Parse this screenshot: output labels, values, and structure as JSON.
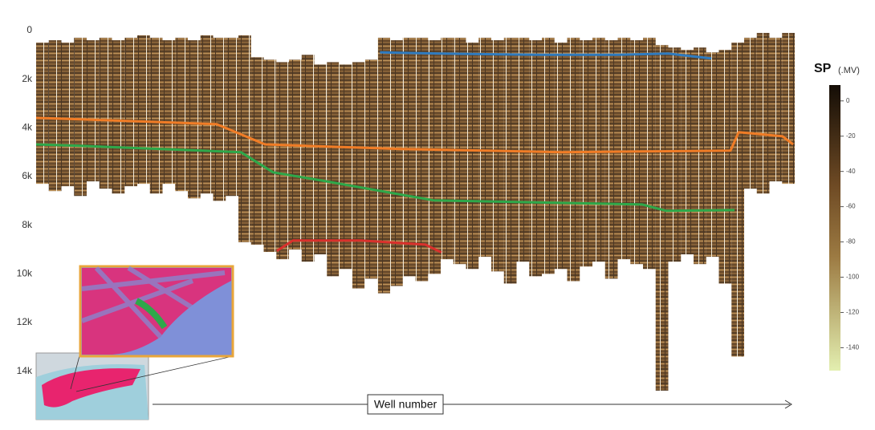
{
  "chart_data": {
    "type": "well-log-section",
    "xlabel": "Well number",
    "xlim": [
      0,
      300
    ],
    "ylim": [
      0,
      15000
    ],
    "yticks": [
      0,
      {
        "value": 2000,
        "label": "2k"
      },
      {
        "value": 4000,
        "label": "4k"
      },
      {
        "value": 6000,
        "label": "6k"
      },
      {
        "value": 8000,
        "label": "8k"
      },
      {
        "value": 10000,
        "label": "10k"
      },
      {
        "value": 12000,
        "label": "12k"
      },
      {
        "value": 14000,
        "label": "14k"
      }
    ],
    "wells": {
      "x": [
        0,
        5,
        10,
        15,
        20,
        25,
        30,
        35,
        40,
        45,
        50,
        55,
        60,
        65,
        70,
        75,
        80,
        85,
        90,
        95,
        100,
        105,
        110,
        115,
        120,
        125,
        130,
        135,
        140,
        145,
        150,
        155,
        160,
        165,
        170,
        175,
        180,
        185,
        190,
        195,
        200,
        205,
        210,
        215,
        220,
        225,
        230,
        235,
        240,
        245,
        250,
        255,
        260,
        265,
        270,
        275,
        280,
        285,
        290,
        295
      ],
      "top": [
        500,
        400,
        500,
        300,
        400,
        300,
        400,
        300,
        200,
        300,
        400,
        300,
        400,
        200,
        300,
        300,
        200,
        1100,
        1200,
        1300,
        1200,
        1000,
        1400,
        1300,
        1400,
        1300,
        1200,
        300,
        400,
        300,
        300,
        400,
        300,
        300,
        500,
        300,
        400,
        300,
        300,
        400,
        300,
        500,
        300,
        400,
        300,
        400,
        300,
        400,
        300,
        600,
        700,
        800,
        700,
        900,
        800,
        500,
        300,
        100,
        300,
        100
      ],
      "bottom": [
        6300,
        6600,
        6400,
        6800,
        6200,
        6500,
        6700,
        6400,
        6300,
        6700,
        6300,
        6600,
        6900,
        6700,
        7000,
        6800,
        8700,
        8800,
        9100,
        9400,
        9000,
        9500,
        9200,
        10100,
        9800,
        10600,
        10200,
        10800,
        10500,
        10100,
        10300,
        10000,
        9400,
        9600,
        9800,
        9300,
        9900,
        10400,
        9500,
        10100,
        10000,
        9800,
        10300,
        9700,
        9500,
        10200,
        9400,
        9600,
        9800,
        14800,
        9500,
        9200,
        9600,
        9300,
        10400,
        13400,
        6500,
        6700,
        6200,
        6300
      ]
    },
    "horizons": [
      {
        "color": "#2f7bbf",
        "x": [
          136,
          160,
          200,
          230,
          250,
          267
        ],
        "values": [
          900,
          950,
          1000,
          1000,
          950,
          1150
        ]
      },
      {
        "color": "#f07c26",
        "x": [
          0,
          17.5,
          71.4,
          90.5,
          144.4,
          207.9,
          274.6,
          277.8,
          295.2,
          299.4
        ],
        "values": [
          3590,
          3650,
          3850,
          4680,
          4870,
          5000,
          4940,
          4180,
          4350,
          4680
        ]
      },
      {
        "color": "#2ea84a",
        "x": [
          0,
          17.5,
          81,
          93.7,
          112.7,
          157.1,
          239.7,
          249.2,
          276.2
        ],
        "values": [
          4680,
          4740,
          5000,
          5830,
          6160,
          6980,
          7150,
          7410,
          7380
        ]
      },
      {
        "color": "#d9302c",
        "x": [
          95.2,
          101.6,
          128.6,
          153.9,
          160.3
        ],
        "values": [
          9060,
          8630,
          8630,
          8800,
          9120
        ]
      }
    ],
    "colorbar": {
      "title": "SP",
      "unit": "(.MV)",
      "lim": [
        9,
        -153
      ],
      "ticks": [
        0,
        -20,
        -40,
        -60,
        -80,
        -100,
        -120,
        -140
      ]
    }
  }
}
